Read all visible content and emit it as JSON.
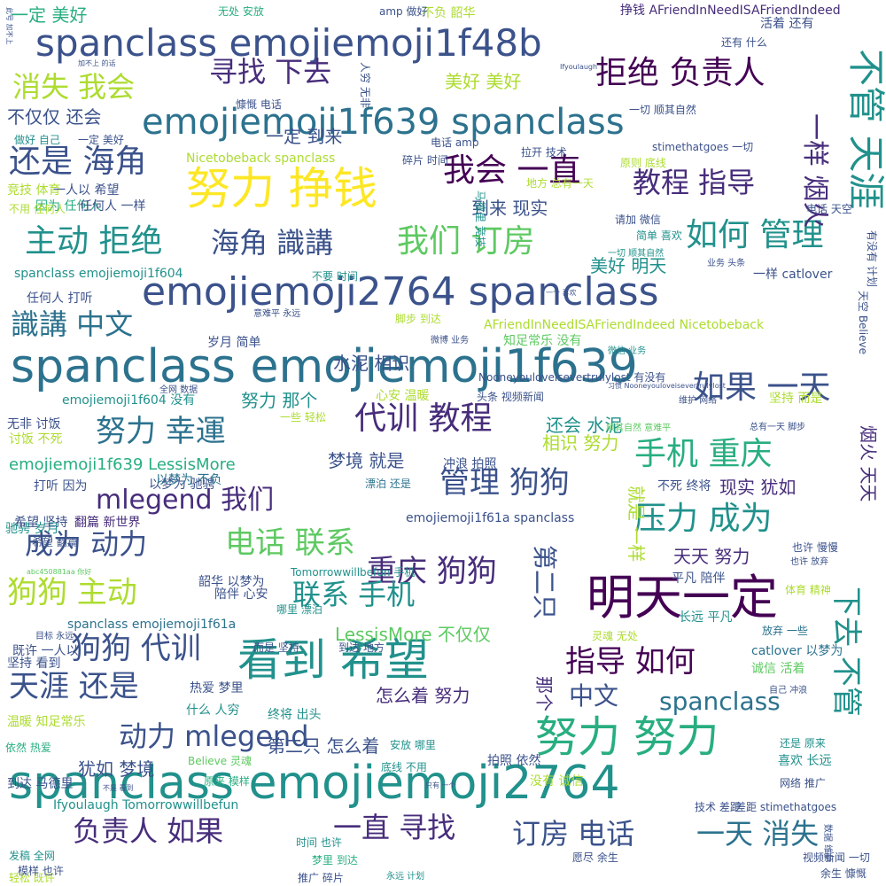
{
  "palette": {
    "background": "#ffffff",
    "colors": [
      "#440154",
      "#472d7b",
      "#3b528b",
      "#2c728e",
      "#21918c",
      "#28ae80",
      "#5ec962",
      "#addc30",
      "#fde725"
    ]
  },
  "words": [
    {
      "text": "spanclass emojiemoji1f639"
    },
    {
      "text": "spanclass emojiemoji2764"
    },
    {
      "text": "emojiemoji2764 spanclass"
    },
    {
      "text": "spanclass emojiemoji1f48b"
    },
    {
      "text": "emojiemoji1f639 spanclass"
    },
    {
      "text": "努力 挣钱"
    },
    {
      "text": "看到 希望"
    },
    {
      "text": "明天一定"
    },
    {
      "text": "努力 努力"
    },
    {
      "text": "不管 天涯"
    },
    {
      "text": "我们 订房"
    },
    {
      "text": "如何 管理"
    },
    {
      "text": "主动 拒绝"
    },
    {
      "text": "拒绝 负责人"
    },
    {
      "text": "寻找 下去"
    },
    {
      "text": "消失 我会"
    },
    {
      "text": "还是 海角"
    },
    {
      "text": "我会 一直"
    },
    {
      "text": "教程 指导"
    },
    {
      "text": "海角 識講"
    },
    {
      "text": "識講 中文"
    },
    {
      "text": "如果 一天"
    },
    {
      "text": "代训 教程"
    },
    {
      "text": "努力 幸運"
    },
    {
      "text": "手机 重庆"
    },
    {
      "text": "管理 狗狗"
    },
    {
      "text": "mlegend 我们"
    },
    {
      "text": "成为 动力"
    },
    {
      "text": "电话 联系"
    },
    {
      "text": "压力 成为"
    },
    {
      "text": "重庆 狗狗"
    },
    {
      "text": "狗狗 主动"
    },
    {
      "text": "联系 手机"
    },
    {
      "text": "狗狗 代训"
    },
    {
      "text": "指导 如何"
    },
    {
      "text": "天涯 还是"
    },
    {
      "text": "动力 mlegend"
    },
    {
      "text": "负责人 如果"
    },
    {
      "text": "一直 寻找"
    },
    {
      "text": "订房 电话"
    },
    {
      "text": "一天 消失"
    },
    {
      "text": "下去 不管"
    },
    {
      "text": "中文"
    },
    {
      "text": "spanclass"
    },
    {
      "text": "一样 烟火"
    },
    {
      "text": "就是 一样"
    },
    {
      "text": "第二只"
    },
    {
      "text": "烟火 天天"
    },
    {
      "text": "天天 努力"
    },
    {
      "text": "怎么着 努力"
    },
    {
      "text": "第二只 怎么着"
    },
    {
      "text": "犹如 梦境"
    },
    {
      "text": "梦境 就是"
    },
    {
      "text": "现实 犹如"
    },
    {
      "text": "到来 现实"
    },
    {
      "text": "一定 到来"
    },
    {
      "text": "一定 美好"
    },
    {
      "text": "美好 美好"
    },
    {
      "text": "美好 明天"
    },
    {
      "text": "不仅仅 还会"
    },
    {
      "text": "还会 水泥"
    },
    {
      "text": "水泥 相识"
    },
    {
      "text": "相识 努力"
    },
    {
      "text": "努力 那个"
    },
    {
      "text": "那个"
    },
    {
      "text": "LessisMore 不仅仅"
    },
    {
      "text": "emojiemoji1f639 LessisMore"
    },
    {
      "text": "spanclass emojiemoji1f604"
    },
    {
      "text": "emojiemoji1f604 没有"
    },
    {
      "text": "spanclass emojiemoji1f61a"
    },
    {
      "text": "emojiemoji1f61a spanclass"
    },
    {
      "text": "AFriendInNeedISAFriendIndeed Nicetobeback"
    },
    {
      "text": "挣钱 AFriendInNeedISAFriendIndeed"
    },
    {
      "text": "Nicetobeback spanclass"
    },
    {
      "text": "Ifyoulaugh Tomorrowwillbefun"
    },
    {
      "text": "Tomorrowwillbefun 手机"
    },
    {
      "text": "catlover 以梦为"
    },
    {
      "text": "一样 catlover"
    },
    {
      "text": "驰骋 岁月"
    },
    {
      "text": "岁月 简单"
    },
    {
      "text": "简单 喜欢"
    },
    {
      "text": "喜欢 长远"
    },
    {
      "text": "长远 平凡"
    },
    {
      "text": "平凡 陪伴"
    },
    {
      "text": "陪伴 心安"
    },
    {
      "text": "心安 温暖"
    },
    {
      "text": "温暖 知足常乐"
    },
    {
      "text": "知足常乐 没有"
    },
    {
      "text": "没有 诚信"
    },
    {
      "text": "诚信 活着"
    },
    {
      "text": "活着 还有"
    },
    {
      "text": "还有 什么"
    },
    {
      "text": "什么 人穷"
    },
    {
      "text": "人穷 无非"
    },
    {
      "text": "无非 讨饭"
    },
    {
      "text": "讨饭 不死"
    },
    {
      "text": "不死 终将"
    },
    {
      "text": "终将 出头"
    },
    {
      "text": "坚持 而是"
    },
    {
      "text": "而是 坚持"
    },
    {
      "text": "坚持 看到"
    },
    {
      "text": "到达 地方"
    },
    {
      "text": "到达 马德里"
    },
    {
      "text": "马德里 竞技"
    },
    {
      "text": "竞技 体育"
    },
    {
      "text": "体育 精神"
    },
    {
      "text": "因为 任何人"
    },
    {
      "text": "任何人 一样"
    },
    {
      "text": "任何人 打听"
    },
    {
      "text": "打听 因为"
    },
    {
      "text": "韶华 以梦为"
    },
    {
      "text": "以梦为 驰骋"
    },
    {
      "text": "以梦为 不负"
    },
    {
      "text": "不负 韶华"
    },
    {
      "text": "冲浪 拍照"
    },
    {
      "text": "拍照 依然"
    },
    {
      "text": "依然 热爱"
    },
    {
      "text": "热爱 梦里"
    },
    {
      "text": "梦里 到达"
    },
    {
      "text": "时间 也许"
    },
    {
      "text": "也许 慢慢"
    },
    {
      "text": "也许 放弃"
    },
    {
      "text": "放弃 一些"
    },
    {
      "text": "一些 轻松"
    },
    {
      "text": "轻松 既许"
    },
    {
      "text": "既许 一人以"
    },
    {
      "text": "一人以 希望"
    },
    {
      "text": "希望 坚持"
    },
    {
      "text": "希望 翻篇"
    },
    {
      "text": "翻篇 新世界"
    },
    {
      "text": "电话 天空"
    },
    {
      "text": "天空 Believe"
    },
    {
      "text": "Believe 灵魂"
    },
    {
      "text": "灵魂 无处"
    },
    {
      "text": "无处 安放"
    },
    {
      "text": "安放 哪里"
    },
    {
      "text": "哪里 漂泊"
    },
    {
      "text": "漂泊 还是"
    },
    {
      "text": "还是 原来"
    },
    {
      "text": "原来 模样"
    },
    {
      "text": "模样 也许"
    },
    {
      "text": "拉开 技术"
    },
    {
      "text": "技术 差距"
    },
    {
      "text": "差距 stimethatgoes"
    },
    {
      "text": "stimethatgoes 一切"
    },
    {
      "text": "一切 顺其自然"
    },
    {
      "text": "顺其自然 意难平"
    },
    {
      "text": "意难平 永远"
    },
    {
      "text": "永远 计划"
    },
    {
      "text": "目标 永远"
    },
    {
      "text": "微博 业务"
    },
    {
      "text": "业务 头条"
    },
    {
      "text": "头条 视频新闻"
    },
    {
      "text": "视频新闻 一切"
    },
    {
      "text": "数据 维护"
    },
    {
      "text": "维护 网络"
    },
    {
      "text": "网络 推广"
    },
    {
      "text": "推广 碎片"
    },
    {
      "text": "碎片 时间"
    },
    {
      "text": "余生 慷慨"
    },
    {
      "text": "慷慨 电话"
    },
    {
      "text": "电话 amp"
    },
    {
      "text": "amp 做好"
    },
    {
      "text": "做好 自己"
    },
    {
      "text": "自己 冲浪"
    },
    {
      "text": "原则 底线"
    },
    {
      "text": "底线 不用"
    },
    {
      "text": "不用 任何人"
    },
    {
      "text": "不要 时间"
    },
    {
      "text": "发稿 全网"
    },
    {
      "text": "全网 数据"
    },
    {
      "text": "脚步 到达"
    },
    {
      "text": "总有一天 脚步"
    },
    {
      "text": "地方 总有一天"
    },
    {
      "text": "愿尽 余生"
    },
    {
      "text": "一切 顺其自然"
    },
    {
      "text": "请加 微信"
    },
    {
      "text": "微信 业务"
    },
    {
      "text": "习惯 Nooneyouloveisevertrulylost"
    },
    {
      "text": "Nooneyouloveisevertrulylost 有没有"
    },
    {
      "text": "abc450881aa 你好"
    },
    {
      "text": "加不上 的话"
    },
    {
      "text": "此号 加不上"
    },
    {
      "text": "只有 一个"
    },
    {
      "text": "一个 喜欢"
    },
    {
      "text": "Ifyoulaugh"
    },
    {
      "text": "不是 看到"
    },
    {
      "text": "有没有 计划"
    },
    {
      "text": "一定 美好"
    }
  ]
}
